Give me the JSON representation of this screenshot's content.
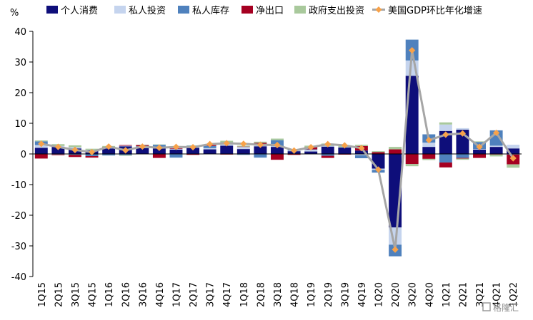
{
  "chart_data": {
    "type": "bar",
    "stacked": true,
    "unit_label": "%",
    "categories": [
      "1Q15",
      "2Q15",
      "3Q15",
      "4Q15",
      "1Q16",
      "2Q16",
      "3Q16",
      "4Q16",
      "1Q17",
      "2Q17",
      "3Q17",
      "4Q17",
      "1Q18",
      "2Q18",
      "3Q18",
      "4Q18",
      "1Q19",
      "2Q19",
      "3Q19",
      "4Q19",
      "1Q20",
      "2Q20",
      "3Q20",
      "4Q20",
      "1Q21",
      "2Q21",
      "3Q21",
      "4Q21",
      "1Q22"
    ],
    "x_tick_labels": [
      "1Q15",
      "2Q15",
      "3Q15",
      "4Q15",
      "1Q16",
      "2Q16",
      "3Q16",
      "4Q16",
      "1Q17",
      "2Q17",
      "3Q17",
      "4Q17",
      "1Q18",
      "2Q18",
      "3Q18",
      "4Q18",
      "1Q19",
      "2Q19",
      "3Q19",
      "4Q19",
      "1Q20",
      "2Q20",
      "3Q20",
      "4Q20",
      "1Q21",
      "2Q21",
      "3Q21",
      "4Q21",
      "1Q22"
    ],
    "ylim": [
      -40,
      40
    ],
    "yticks": [
      -40,
      -30,
      -20,
      -10,
      0,
      10,
      20,
      30,
      40
    ],
    "legend_position": "top",
    "series": [
      {
        "name": "个人消费",
        "kind": "bar",
        "color": "#0e0e7a",
        "values": [
          2.0,
          2.3,
          1.8,
          1.2,
          1.8,
          2.5,
          1.9,
          1.8,
          1.4,
          2.0,
          1.5,
          2.7,
          1.6,
          2.5,
          2.3,
          0.9,
          0.8,
          2.4,
          2.1,
          1.1,
          -4.8,
          -24.0,
          25.5,
          2.3,
          7.5,
          7.9,
          1.4,
          2.3,
          1.8
        ]
      },
      {
        "name": "私人投资",
        "kind": "bar",
        "color": "#c5d4ee",
        "values": [
          0.9,
          0.3,
          0.4,
          0.1,
          0.2,
          0.2,
          0.3,
          0.2,
          0.3,
          0.6,
          0.4,
          0.6,
          0.7,
          0.5,
          0.2,
          0.2,
          0.6,
          0.2,
          0.1,
          -0.4,
          -0.4,
          -5.6,
          5.0,
          1.4,
          2.1,
          0.5,
          0.2,
          0.4,
          1.2
        ]
      },
      {
        "name": "私人库存",
        "kind": "bar",
        "color": "#4f81bd",
        "values": [
          1.2,
          -0.2,
          -0.3,
          -0.7,
          -0.5,
          -0.4,
          0.3,
          1.0,
          -1.2,
          0.1,
          0.7,
          0.5,
          -0.3,
          -1.2,
          2.0,
          0.3,
          0.1,
          -0.6,
          -0.1,
          -1.0,
          -0.9,
          -3.8,
          6.8,
          2.7,
          -2.8,
          -1.3,
          2.3,
          5.0,
          -0.2
        ]
      },
      {
        "name": "净出口",
        "kind": "bar",
        "color": "#a50021",
        "values": [
          -1.5,
          -0.2,
          -0.7,
          -0.5,
          0.2,
          0.2,
          0.4,
          -1.3,
          0.2,
          -0.3,
          0.3,
          -0.2,
          0.1,
          0.6,
          -1.9,
          -0.3,
          0.7,
          -0.7,
          -0.1,
          1.5,
          0.6,
          1.5,
          -3.3,
          -1.6,
          -1.6,
          -0.2,
          -1.3,
          -0.2,
          -3.2
        ]
      },
      {
        "name": "政府支出投资",
        "kind": "bar",
        "color": "#a9c99c",
        "values": [
          0.3,
          0.6,
          0.6,
          0.4,
          0.4,
          -0.2,
          0.1,
          0.1,
          0.0,
          0.1,
          0.1,
          0.5,
          0.3,
          0.4,
          0.5,
          0.0,
          0.5,
          0.8,
          0.4,
          0.4,
          0.3,
          0.8,
          -0.7,
          -0.4,
          0.7,
          -0.4,
          0.2,
          -0.6,
          -1.1
        ]
      },
      {
        "name": "美国GDP环比年化增速",
        "kind": "line",
        "color": "#a6a6a6",
        "marker_color": "#f7a24a",
        "values": [
          3.3,
          2.3,
          1.3,
          0.6,
          2.4,
          1.2,
          2.4,
          2.0,
          2.3,
          2.2,
          3.2,
          3.5,
          3.3,
          3.0,
          2.9,
          1.1,
          2.2,
          3.2,
          2.8,
          1.9,
          -5.1,
          -31.2,
          33.8,
          4.5,
          6.3,
          6.7,
          2.3,
          6.9,
          -1.4
        ]
      }
    ]
  },
  "watermark": "格隆汇"
}
